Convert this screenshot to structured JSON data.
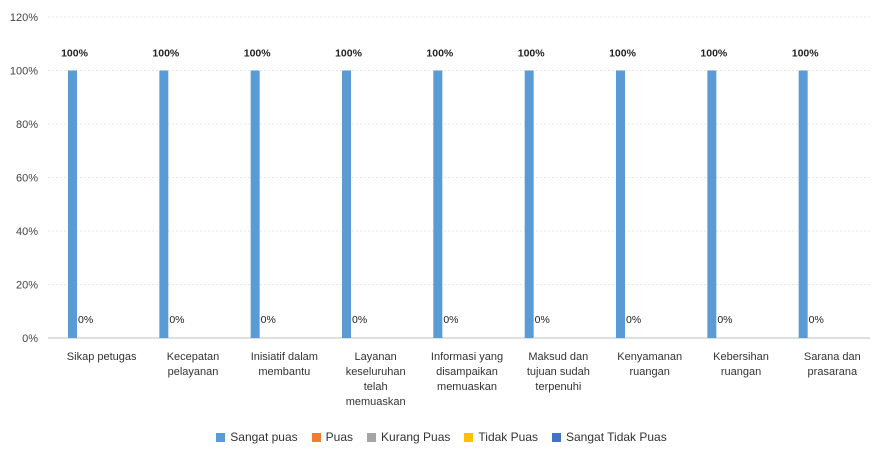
{
  "chart_data": {
    "type": "bar",
    "title": "",
    "xlabel": "",
    "ylabel": "",
    "ylim": [
      0,
      1.2
    ],
    "y_ticks": [
      "0%",
      "20%",
      "40%",
      "60%",
      "80%",
      "100%",
      "120%"
    ],
    "categories": [
      [
        "Sikap petugas"
      ],
      [
        "Kecepatan",
        "pelayanan"
      ],
      [
        "Inisiatif dalam",
        "membantu"
      ],
      [
        "Layanan",
        "keseluruhan",
        "telah",
        "memuaskan"
      ],
      [
        "Informasi yang",
        "disampaikan",
        "memuaskan"
      ],
      [
        "Maksud dan",
        "tujuan sudah",
        "terpenuhi"
      ],
      [
        "Kenyamanan",
        "ruangan"
      ],
      [
        "Kebersihan",
        "ruangan"
      ],
      [
        "Sarana dan",
        "prasarana"
      ]
    ],
    "series": [
      {
        "name": "Sangat puas",
        "color": "#5b9bd5",
        "values": [
          1,
          1,
          1,
          1,
          1,
          1,
          1,
          1,
          1
        ],
        "labels": [
          "100%",
          "100%",
          "100%",
          "100%",
          "100%",
          "100%",
          "100%",
          "100%",
          "100%"
        ]
      },
      {
        "name": "Puas",
        "color": "#ed7d31",
        "values": [
          0,
          0,
          0,
          0,
          0,
          0,
          0,
          0,
          0
        ],
        "labels": [
          "0%",
          "0%",
          "0%",
          "0%",
          "0%",
          "0%",
          "0%",
          "0%",
          "0%"
        ]
      },
      {
        "name": "Kurang Puas",
        "color": "#a5a5a5",
        "values": [
          0,
          0,
          0,
          0,
          0,
          0,
          0,
          0,
          0
        ],
        "labels": []
      },
      {
        "name": "Tidak Puas",
        "color": "#ffc000",
        "values": [
          0,
          0,
          0,
          0,
          0,
          0,
          0,
          0,
          0
        ],
        "labels": []
      },
      {
        "name": "Sangat Tidak Puas",
        "color": "#4472c4",
        "values": [
          0,
          0,
          0,
          0,
          0,
          0,
          0,
          0,
          0
        ],
        "labels": []
      }
    ],
    "legend_position": "bottom",
    "grid": true
  }
}
